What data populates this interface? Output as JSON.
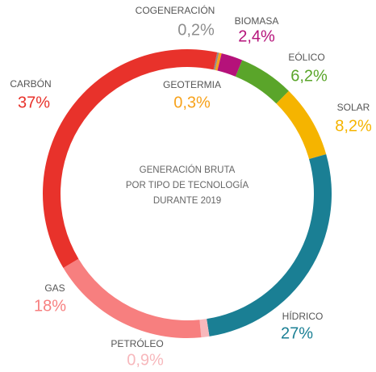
{
  "chart_data": {
    "type": "donut",
    "title": [
      "GENERACIÓN BRUTA",
      "POR TIPO DE TECNOLOGÍA",
      "DURANTE 2019"
    ],
    "categories": [
      "COGENERACIÓN",
      "GEOTERMIA",
      "BIOMASA",
      "EÓLICO",
      "SOLAR",
      "HÍDRICO",
      "PETRÓLEO",
      "GAS",
      "CARBÓN"
    ],
    "values": [
      0.2,
      0.3,
      2.4,
      6.2,
      8.2,
      27,
      0.9,
      18,
      37
    ],
    "value_labels": [
      "0,2%",
      "0,3%",
      "2,4%",
      "6,2%",
      "8,2%",
      "27%",
      "0,9%",
      "18%",
      "37%"
    ],
    "colors": [
      "#8e8e8e",
      "#f7a21b",
      "#b5127a",
      "#5aa52a",
      "#f5b400",
      "#1a7f94",
      "#f7b8bc",
      "#f77f7f",
      "#e8322b"
    ]
  }
}
